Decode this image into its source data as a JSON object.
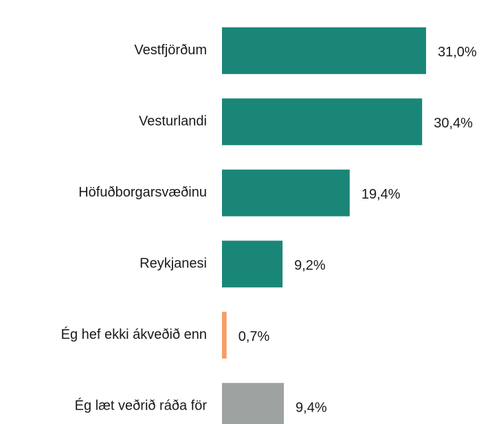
{
  "chart_data": {
    "type": "hbar",
    "categories": [
      "Vestfjörðum",
      "Vesturlandi",
      "Höfuðborgarsvæðinu",
      "Reykjanesi",
      "Ég hef ekki ákveðið enn",
      "Ég læt veðrið ráða för"
    ],
    "values": [
      31.0,
      30.4,
      19.4,
      9.2,
      0.7,
      9.4
    ],
    "value_labels": [
      "31,0%",
      "30,4%",
      "19,4%",
      "9,2%",
      "0,7%",
      "9,4%"
    ],
    "colors": [
      "#1a8678",
      "#1a8678",
      "#1a8678",
      "#1a8678",
      "#f79d67",
      "#9ea3a2"
    ]
  }
}
